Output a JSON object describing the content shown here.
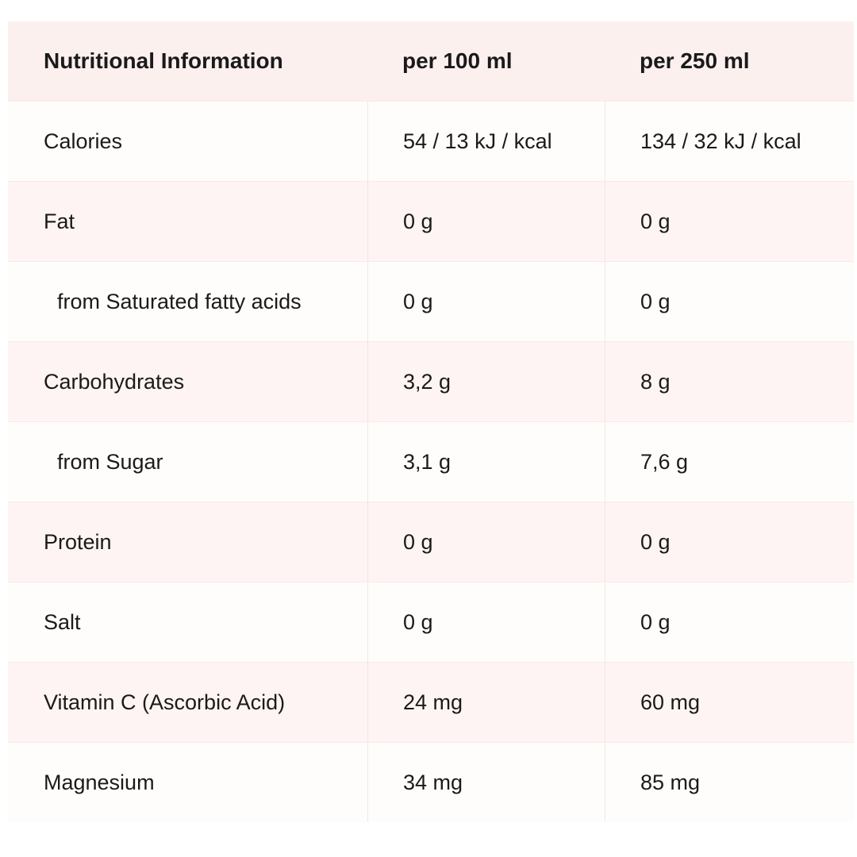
{
  "table": {
    "headers": [
      "Nutritional Information",
      "per 100 ml",
      "per 250 ml"
    ],
    "rows": [
      [
        "Calories",
        "54 / 13 kJ / kcal",
        "134 / 32 kJ / kcal"
      ],
      [
        "Fat",
        "0 g",
        "0 g"
      ],
      [
        "from Saturated fatty acids",
        "0 g",
        "0 g"
      ],
      [
        "Carbohydrates",
        "3,2 g",
        "8 g"
      ],
      [
        "from Sugar",
        "3,1 g",
        "7,6 g"
      ],
      [
        "Protein",
        "0 g",
        "0 g"
      ],
      [
        "Salt",
        "0 g",
        "0 g"
      ],
      [
        "Vitamin C (Ascorbic Acid)",
        "24 mg",
        "60 mg"
      ],
      [
        "Magnesium",
        "34 mg",
        "85 mg"
      ]
    ]
  }
}
